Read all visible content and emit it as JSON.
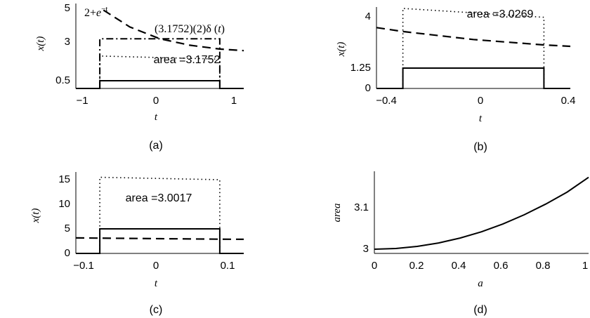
{
  "chart_data": [
    {
      "panel": "(a)",
      "type": "line",
      "xlabel": "t",
      "ylabel": "x(t)",
      "xlim": [
        -1.4,
        1.4
      ],
      "ylim": [
        0,
        5
      ],
      "xticks": [
        "-1",
        "0",
        "1"
      ],
      "yticks": [
        "0.5",
        "3",
        "5"
      ],
      "annotations": [
        "2+e^-t",
        "(3.1752)(2)δ (t)",
        "area =3.1752"
      ],
      "series": [
        {
          "style": "solid",
          "x": [
            -1.4,
            -1,
            -1,
            1,
            1,
            1.4
          ],
          "y": [
            0,
            0,
            0.5,
            0.5,
            0,
            0
          ]
        },
        {
          "style": "dotted",
          "x": [
            -1,
            -1,
            0,
            1,
            1
          ],
          "y": [
            0,
            2.1,
            2.0,
            1.9,
            0
          ]
        },
        {
          "style": "dashed",
          "x": [
            -0.94,
            -0.5,
            0,
            0.5,
            1,
            1.4
          ],
          "y": [
            4.9,
            3.9,
            3.2,
            2.8,
            2.55,
            2.45
          ]
        },
        {
          "style": "dashdot",
          "x": [
            -1,
            -1,
            1,
            1
          ],
          "y": [
            0,
            3.2,
            3.2,
            0
          ]
        }
      ]
    },
    {
      "panel": "(b)",
      "type": "line",
      "xlabel": "t",
      "ylabel": "x(t)",
      "xlim": [
        -0.55,
        0.55
      ],
      "ylim": [
        0,
        4.5
      ],
      "xticks": [
        "-0.4",
        "0",
        "0.4"
      ],
      "yticks": [
        "0",
        "1.25",
        "4"
      ],
      "annotations": [
        "area =3.0269"
      ],
      "series": [
        {
          "style": "solid",
          "x": [
            -0.55,
            -0.4,
            -0.4,
            0.4,
            0.4,
            0.55
          ],
          "y": [
            0,
            0,
            1.25,
            1.25,
            0,
            0
          ]
        },
        {
          "style": "dotted",
          "x": [
            -0.4,
            -0.4,
            0.4,
            0.4
          ],
          "y": [
            0,
            4.5,
            4.2,
            0
          ]
        },
        {
          "style": "dashed",
          "x": [
            -0.55,
            -0.4,
            0,
            0.4,
            0.55
          ],
          "y": [
            3.73,
            3.49,
            3.0,
            2.67,
            2.58
          ]
        }
      ]
    },
    {
      "panel": "(c)",
      "type": "line",
      "xlabel": "t",
      "ylabel": "x(t)",
      "xlim": [
        -0.14,
        0.14
      ],
      "ylim": [
        0,
        17
      ],
      "xticks": [
        "-0.1",
        "0",
        "0.1"
      ],
      "yticks": [
        "0",
        "5",
        "10",
        "15"
      ],
      "annotations": [
        "area =3.0017"
      ],
      "series": [
        {
          "style": "solid",
          "x": [
            -0.14,
            -0.1,
            -0.1,
            0.1,
            0.1,
            0.14
          ],
          "y": [
            0,
            0,
            5,
            5,
            0,
            0
          ]
        },
        {
          "style": "dotted",
          "x": [
            -0.1,
            -0.1,
            0.1,
            0.1
          ],
          "y": [
            0,
            15.5,
            15.0,
            0
          ]
        },
        {
          "style": "dashed",
          "x": [
            -0.14,
            -0.1,
            0,
            0.1,
            0.14
          ],
          "y": [
            3.15,
            3.11,
            3.0,
            2.9,
            2.87
          ]
        }
      ]
    },
    {
      "panel": "(d)",
      "type": "line",
      "xlabel": "a",
      "ylabel": "area",
      "xlim": [
        0,
        1
      ],
      "ylim": [
        2.98,
        3.19
      ],
      "xticks": [
        "0",
        "0.2",
        "0.4",
        "0.6",
        "0.8",
        "1"
      ],
      "yticks": [
        "3",
        "3.1"
      ],
      "series": [
        {
          "style": "solid",
          "x": [
            0,
            0.1,
            0.2,
            0.3,
            0.4,
            0.5,
            0.6,
            0.7,
            0.8,
            0.9,
            1.0
          ],
          "y": [
            3.0,
            3.0017,
            3.0067,
            3.015,
            3.0269,
            3.0421,
            3.0609,
            3.0832,
            3.1091,
            3.1387,
            3.1752
          ]
        }
      ]
    }
  ]
}
